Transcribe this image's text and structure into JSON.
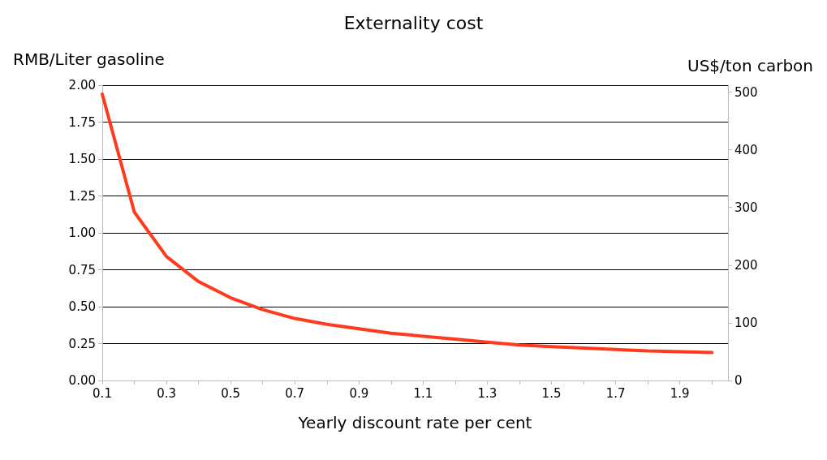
{
  "chart_data": {
    "type": "line",
    "title": "Externality cost",
    "xlabel": "Yearly discount rate per cent",
    "ylabel": "RMB/Liter gasoline",
    "y2label": "US$/ton carbon",
    "x": [
      0.1,
      0.2,
      0.3,
      0.4,
      0.5,
      0.6,
      0.7,
      0.8,
      0.9,
      1.0,
      1.1,
      1.2,
      1.3,
      1.4,
      1.5,
      1.6,
      1.7,
      1.8,
      1.9,
      2.0
    ],
    "series": [
      {
        "color": "#ff3b1f",
        "values": [
          1.94,
          1.14,
          0.84,
          0.67,
          0.56,
          0.48,
          0.42,
          0.38,
          0.35,
          0.32,
          0.3,
          0.28,
          0.26,
          0.24,
          0.23,
          0.22,
          0.21,
          0.2,
          0.195,
          0.19
        ]
      }
    ],
    "xlim": [
      0.1,
      2.05
    ],
    "xticks": [
      0.1,
      {
        "value": 0.2,
        "label": null
      },
      0.3,
      {
        "value": 0.4,
        "label": null
      },
      0.5,
      {
        "value": 0.6,
        "label": null
      },
      0.7,
      {
        "value": 0.8,
        "label": null
      },
      0.9,
      {
        "value": 1.0,
        "label": null
      },
      1.1,
      {
        "value": 1.2,
        "label": null
      },
      1.3,
      {
        "value": 1.4,
        "label": null
      },
      1.5,
      {
        "value": 1.6,
        "label": null
      },
      1.7,
      {
        "value": 1.8,
        "label": null
      },
      1.9,
      {
        "value": 2.0,
        "label": null
      }
    ],
    "ylim": [
      0,
      2
    ],
    "yticks": [
      {
        "value": 0,
        "label": "0.00"
      },
      {
        "value": 0.25,
        "label": "0.25"
      },
      {
        "value": 0.5,
        "label": "0.50"
      },
      {
        "value": 0.75,
        "label": "0.75"
      },
      {
        "value": 1,
        "label": "1.00"
      },
      {
        "value": 1.25,
        "label": "1.25"
      },
      {
        "value": 1.5,
        "label": "1.50"
      },
      {
        "value": 1.75,
        "label": "1.75"
      },
      {
        "value": 2,
        "label": "2.00"
      }
    ],
    "y2lim": [
      0,
      512
    ],
    "y2ticks": [
      0,
      100,
      200,
      300,
      400,
      500
    ],
    "grid": "y",
    "marker": "none",
    "line_style": "solid"
  }
}
